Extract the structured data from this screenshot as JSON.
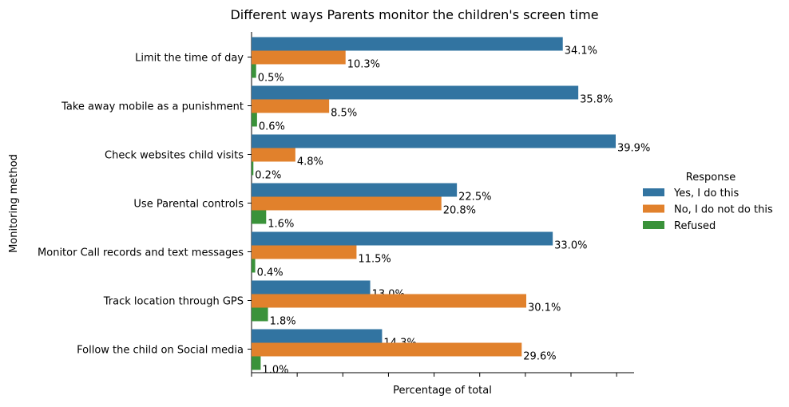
{
  "chart_data": {
    "type": "bar",
    "orientation": "horizontal",
    "title": "Different ways Parents monitor the children's screen time",
    "xlabel": "Percentage of total",
    "ylabel": "Monitoring method",
    "xlim": [
      0,
      42
    ],
    "x_tick_labels_visible": false,
    "grid": false,
    "legend": {
      "title": "Response",
      "placement": "right"
    },
    "categories": [
      "Limit the time of day",
      "Take away mobile as a punishment",
      "Check websites child visits",
      "Use Parental controls",
      "Monitor Call records and text messages",
      "Track location through GPS",
      "Follow the child on Social media"
    ],
    "series": [
      {
        "name": "Yes, I do this",
        "color": "#3274a1",
        "values": [
          34.1,
          35.8,
          39.9,
          22.5,
          33.0,
          13.0,
          14.3
        ]
      },
      {
        "name": "No, I do not do this",
        "color": "#e1812c",
        "values": [
          10.3,
          8.5,
          4.8,
          20.8,
          11.5,
          30.1,
          29.6
        ]
      },
      {
        "name": "Refused",
        "color": "#3a923a",
        "values": [
          0.5,
          0.6,
          0.2,
          1.6,
          0.4,
          1.8,
          1.0
        ]
      }
    ],
    "data_labels": [
      [
        "34.1%",
        "10.3%",
        "0.5%"
      ],
      [
        "35.8%",
        "8.5%",
        "0.6%"
      ],
      [
        "39.9%",
        "4.8%",
        "0.2%"
      ],
      [
        "22.5%",
        "20.8%",
        "1.6%"
      ],
      [
        "33.0%",
        "11.5%",
        "0.4%"
      ],
      [
        "13.0%",
        "30.1%",
        "1.8%"
      ],
      [
        "14.3%",
        "29.6%",
        "1.0%"
      ]
    ]
  }
}
